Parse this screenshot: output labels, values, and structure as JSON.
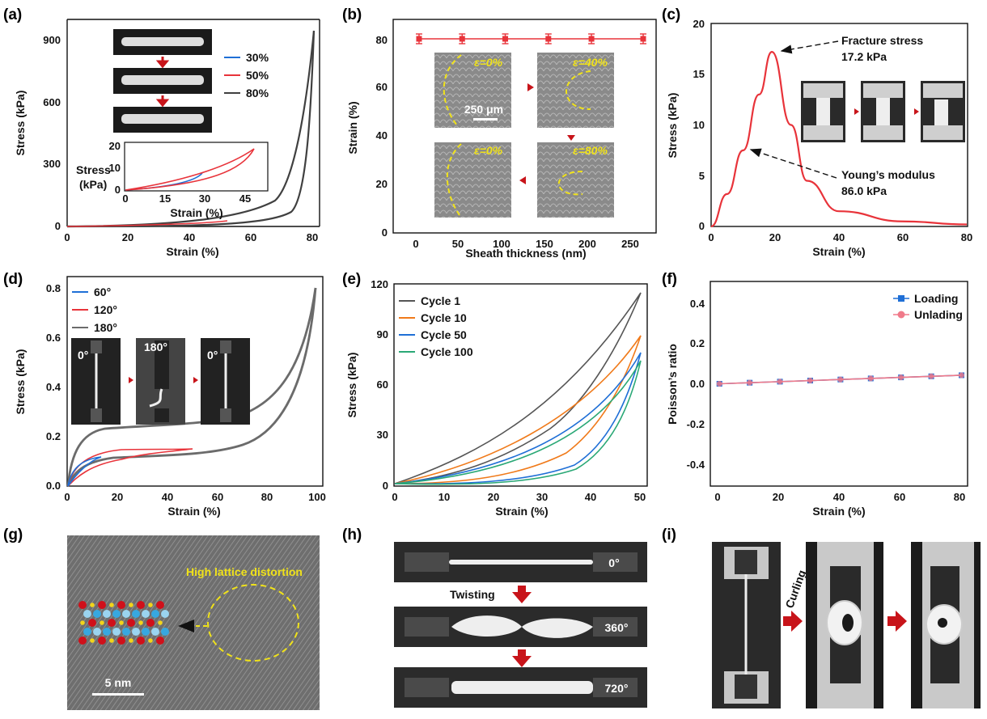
{
  "panel_labels": [
    "(a)",
    "(b)",
    "(c)",
    "(d)",
    "(e)",
    "(f)",
    "(g)",
    "(h)",
    "(i)"
  ],
  "colors": {
    "red": "#e8333a",
    "blue": "#1f6fd6",
    "gray": "#404040",
    "orange": "#f07a1a",
    "green": "#2aa876",
    "dashed_yellow": "#f0e21a",
    "arrow_red": "#c8141a"
  },
  "panel_a": {
    "xlabel": "Strain (%)",
    "ylabel": "Stress (kPa)",
    "xticks": [
      "0",
      "20",
      "40",
      "60",
      "80"
    ],
    "yticks": [
      "0",
      "300",
      "600",
      "900"
    ],
    "legend": [
      "30%",
      "50%",
      "80%"
    ],
    "inset": {
      "xlabel": "Strain (%)",
      "ylabel_1": "Stress",
      "ylabel_2": "(kPa)",
      "xticks": [
        "0",
        "15",
        "30",
        "45"
      ],
      "yticks": [
        "0",
        "10",
        "20"
      ]
    }
  },
  "panel_b": {
    "xlabel": "Sheath thickness (nm)",
    "ylabel": "Strain (%)",
    "xticks": [
      "0",
      "50",
      "100",
      "150",
      "200",
      "250"
    ],
    "yticks": [
      "0",
      "20",
      "40",
      "60",
      "80"
    ],
    "images": [
      "ε=0%",
      "ε=40%",
      "ε=0%",
      "ε=80%"
    ],
    "scale": "250 μm"
  },
  "panel_c": {
    "xlabel": "Strain (%)",
    "ylabel": "Stress (kPa)",
    "xticks": [
      "0",
      "20",
      "40",
      "60",
      "80"
    ],
    "yticks": [
      "0",
      "5",
      "10",
      "15",
      "20"
    ],
    "ann1": "Fracture stress",
    "ann1_val": "17.2 kPa",
    "ann2": "Young’s modulus",
    "ann2_val": "86.0 kPa"
  },
  "panel_d": {
    "xlabel": "Strain (%)",
    "ylabel": "Stress (kPa)",
    "xticks": [
      "0",
      "20",
      "40",
      "60",
      "80",
      "100"
    ],
    "yticks": [
      "0.0",
      "0.2",
      "0.4",
      "0.6",
      "0.8"
    ],
    "legend": [
      "60°",
      "120°",
      "180°"
    ],
    "img_labels": [
      "0°",
      "180°",
      "0°"
    ]
  },
  "panel_e": {
    "xlabel": "Strain (%)",
    "ylabel": "Stress (kPa)",
    "xticks": [
      "0",
      "10",
      "20",
      "30",
      "40",
      "50"
    ],
    "yticks": [
      "0",
      "30",
      "60",
      "90",
      "120"
    ],
    "legend": [
      "Cycle 1",
      "Cycle 10",
      "Cycle 50",
      "Cycle 100"
    ]
  },
  "panel_f": {
    "xlabel": "Strain (%)",
    "ylabel": "Poisson’s ratio",
    "xticks": [
      "0",
      "20",
      "40",
      "60",
      "80"
    ],
    "yticks": [
      "-0.4",
      "-0.2",
      "0.0",
      "0.2",
      "0.4"
    ],
    "legend": [
      "Loading",
      "Unlading"
    ]
  },
  "panel_g": {
    "annotation": "High lattice distortion",
    "scale": "5 nm"
  },
  "panel_h": {
    "angles": [
      "0°",
      "360°",
      "720°"
    ],
    "label": "Twisting"
  },
  "panel_i": {
    "label": "Curling"
  },
  "chart_data": [
    {
      "type": "line",
      "panel": "b",
      "x": [
        0,
        50,
        100,
        150,
        200,
        260
      ],
      "y": [
        80,
        80,
        80,
        80,
        80,
        80
      ],
      "xlim": [
        -30,
        275
      ],
      "ylim": [
        0,
        88
      ]
    },
    {
      "type": "line",
      "panel": "c",
      "x": [
        0,
        5,
        10,
        15,
        19,
        25,
        30,
        40,
        60,
        80
      ],
      "y": [
        0,
        3.2,
        7.5,
        13,
        17.2,
        10,
        4.5,
        1.5,
        0.5,
        0.2
      ],
      "xlim": [
        0,
        80
      ],
      "ylim": [
        0,
        20
      ]
    },
    {
      "type": "line",
      "panel": "f",
      "series": [
        {
          "name": "Loading",
          "x": [
            0,
            10,
            20,
            30,
            40,
            50,
            60,
            70,
            80
          ],
          "y": [
            0,
            0.005,
            0.01,
            0.015,
            0.02,
            0.025,
            0.03,
            0.035,
            0.04
          ]
        },
        {
          "name": "Unlading",
          "x": [
            0,
            10,
            20,
            30,
            40,
            50,
            60,
            70,
            80
          ],
          "y": [
            0,
            0.005,
            0.01,
            0.015,
            0.02,
            0.025,
            0.03,
            0.035,
            0.04
          ]
        }
      ],
      "xlim": [
        -3,
        82
      ],
      "ylim": [
        -0.48,
        0.48
      ]
    }
  ]
}
